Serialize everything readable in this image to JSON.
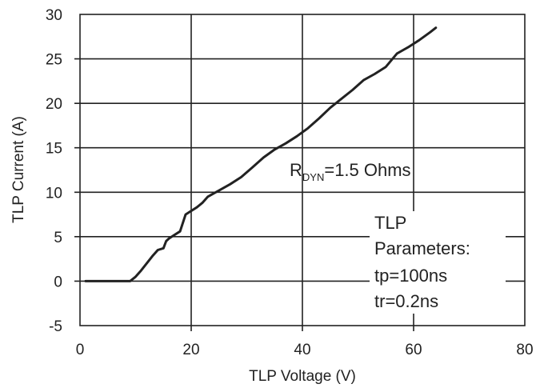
{
  "chart_data": {
    "type": "line",
    "xlabel": "TLP Voltage (V)",
    "ylabel": "TLP Current (A)",
    "xlim": [
      0,
      80
    ],
    "ylim": [
      -5,
      30
    ],
    "x_ticks": [
      0,
      20,
      40,
      60,
      80
    ],
    "y_ticks": [
      -5,
      0,
      5,
      10,
      15,
      20,
      25,
      30
    ],
    "grid": true,
    "series": [
      {
        "color": "#222222",
        "points": [
          [
            1,
            0
          ],
          [
            9,
            0
          ],
          [
            10,
            0.5
          ],
          [
            11,
            1.2
          ],
          [
            12,
            2
          ],
          [
            13,
            2.8
          ],
          [
            14,
            3.5
          ],
          [
            15,
            3.7
          ],
          [
            15.5,
            4.5
          ],
          [
            16,
            4.8
          ],
          [
            17,
            5.2
          ],
          [
            18,
            5.6
          ],
          [
            19,
            7.5
          ],
          [
            20,
            7.9
          ],
          [
            21,
            8.3
          ],
          [
            22,
            8.8
          ],
          [
            23,
            9.5
          ],
          [
            25,
            10.2
          ],
          [
            27,
            10.9
          ],
          [
            29,
            11.7
          ],
          [
            31,
            12.8
          ],
          [
            33,
            13.9
          ],
          [
            35,
            14.8
          ],
          [
            37,
            15.5
          ],
          [
            39,
            16.3
          ],
          [
            41,
            17.2
          ],
          [
            43,
            18.3
          ],
          [
            45,
            19.5
          ],
          [
            47,
            20.5
          ],
          [
            49,
            21.5
          ],
          [
            51,
            22.6
          ],
          [
            53,
            23.3
          ],
          [
            55,
            24.1
          ],
          [
            57,
            25.6
          ],
          [
            59,
            26.3
          ],
          [
            61,
            27.1
          ],
          [
            63,
            28
          ],
          [
            64,
            28.5
          ]
        ]
      }
    ],
    "annotations": [
      {
        "text": "R",
        "sub": "DYN",
        "rest": "=1.5 Ohms"
      },
      {
        "lines": [
          "TLP",
          "Parameters:",
          "tp=100ns",
          "tr=0.2ns"
        ]
      }
    ]
  }
}
